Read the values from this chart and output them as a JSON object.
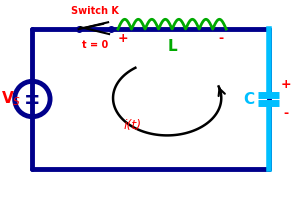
{
  "bg_color": "#f0f0f0",
  "wire_color": "#00008B",
  "wire_lw": 3.5,
  "switch_color": "#000000",
  "inductor_color": "#00AA00",
  "capacitor_color": "#00BFFF",
  "label_color_red": "#FF0000",
  "label_color_black": "#000000",
  "vs_label": "V$_S$",
  "switch_label": "Switch K",
  "t0_label": "t = 0",
  "L_label": "L",
  "C_label": "C",
  "it_label": "i(t)",
  "plus_label": "+",
  "minus_label": "-"
}
